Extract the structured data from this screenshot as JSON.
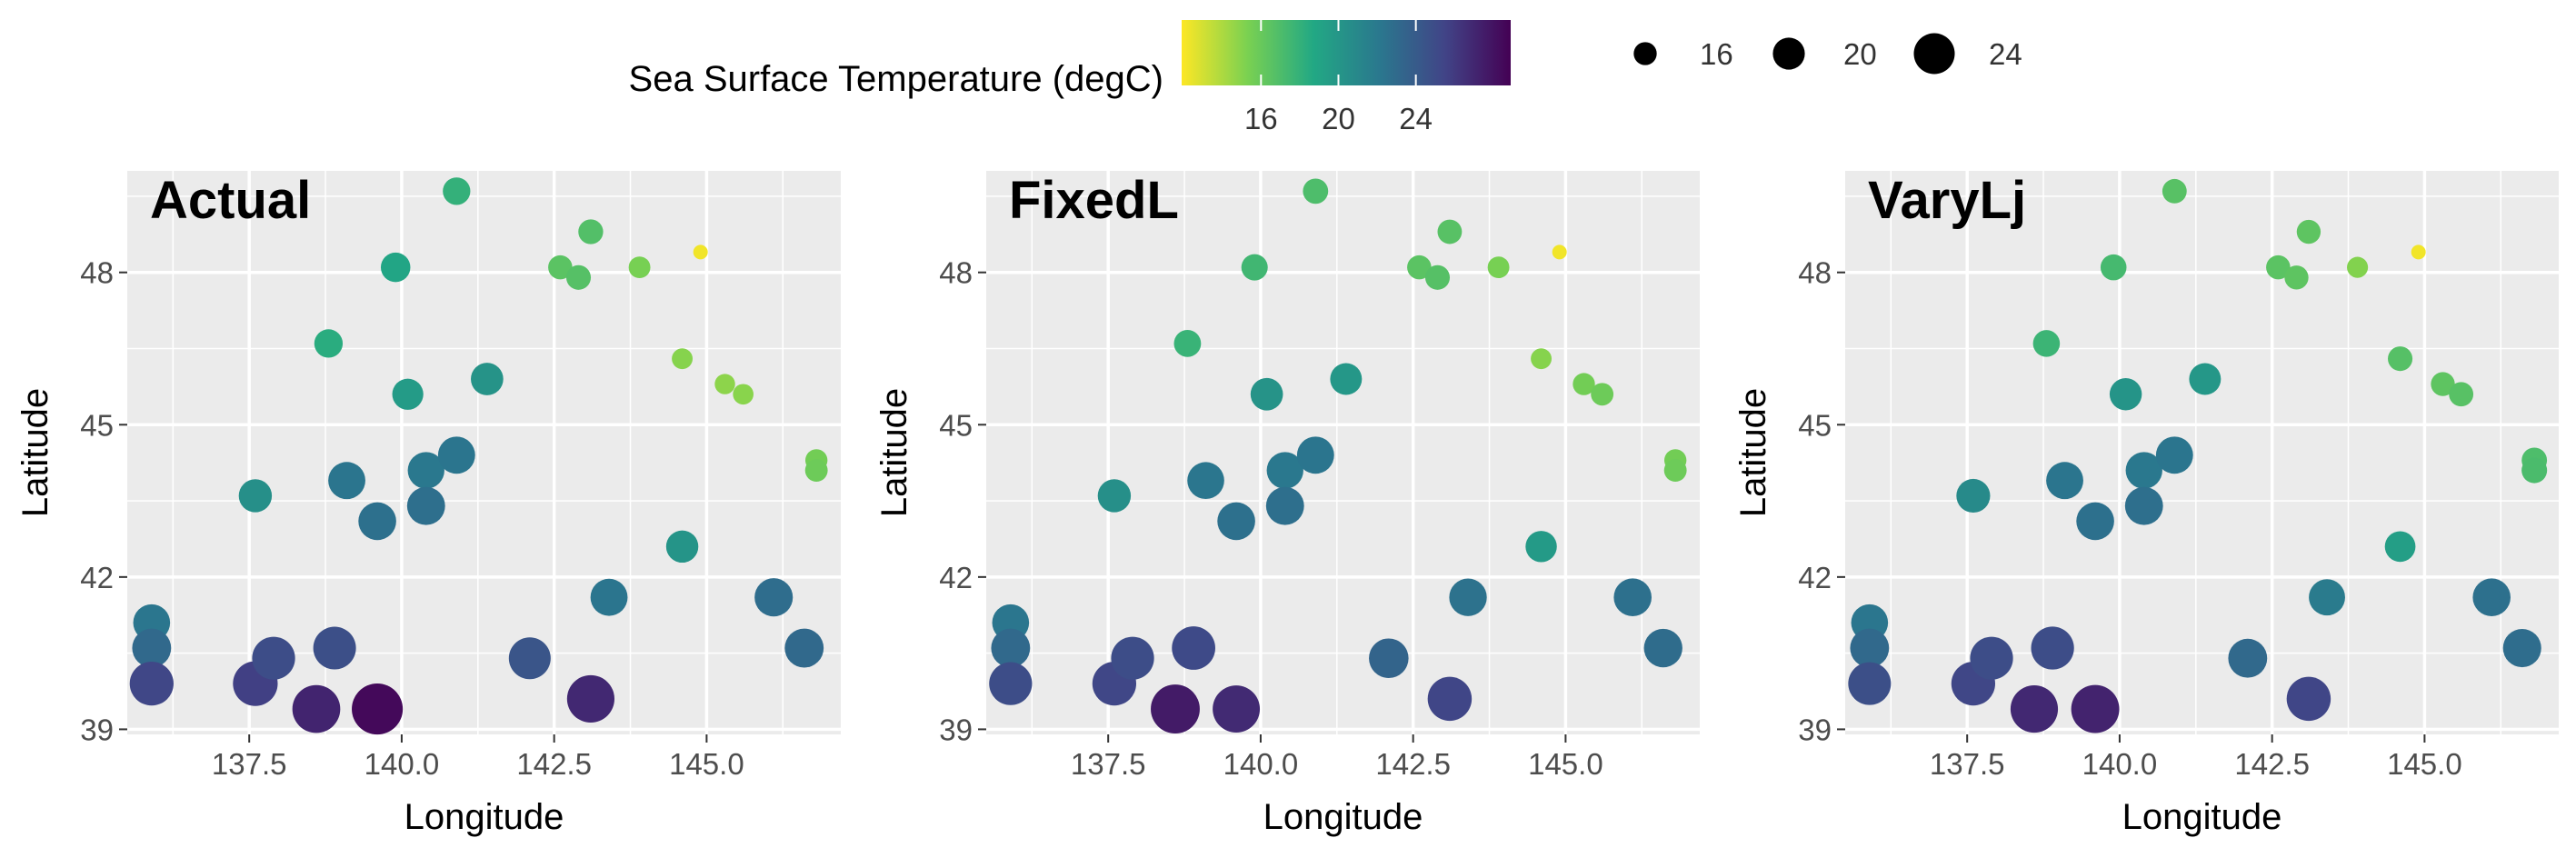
{
  "legend": {
    "color_title": "Sea Surface Temperature (degC)",
    "color_ticks": [
      "16",
      "20",
      "24"
    ],
    "size_labels": [
      "16",
      "20",
      "24"
    ],
    "colormap": [
      "#FDE725",
      "#7AD151",
      "#22A884",
      "#2A788E",
      "#414487",
      "#440154"
    ]
  },
  "chart_data": [
    {
      "type": "scatter",
      "title": "Actual",
      "xlabel": "Longitude",
      "ylabel": "Latitude",
      "xlim": [
        135.5,
        147.2
      ],
      "ylim": [
        38.9,
        50.0
      ],
      "x_ticks": [
        "137.5",
        "140.0",
        "142.5",
        "145.0"
      ],
      "y_ticks": [
        "39",
        "42",
        "45",
        "48"
      ],
      "grid": true,
      "points": [
        {
          "x": 140.9,
          "y": 49.6,
          "t": 18.0
        },
        {
          "x": 139.9,
          "y": 48.1,
          "t": 18.9
        },
        {
          "x": 143.1,
          "y": 48.8,
          "t": 16.8
        },
        {
          "x": 142.6,
          "y": 48.1,
          "t": 16.5
        },
        {
          "x": 142.9,
          "y": 47.9,
          "t": 16.7
        },
        {
          "x": 143.9,
          "y": 48.1,
          "t": 15.4
        },
        {
          "x": 144.9,
          "y": 48.4,
          "t": 12.2
        },
        {
          "x": 138.8,
          "y": 46.6,
          "t": 18.4
        },
        {
          "x": 140.1,
          "y": 45.6,
          "t": 19.6
        },
        {
          "x": 141.4,
          "y": 45.9,
          "t": 20.2
        },
        {
          "x": 144.6,
          "y": 46.3,
          "t": 15.0
        },
        {
          "x": 145.3,
          "y": 45.8,
          "t": 14.8
        },
        {
          "x": 145.6,
          "y": 45.6,
          "t": 14.9
        },
        {
          "x": 146.8,
          "y": 44.3,
          "t": 15.6
        },
        {
          "x": 146.8,
          "y": 44.1,
          "t": 15.8
        },
        {
          "x": 137.6,
          "y": 43.6,
          "t": 20.5
        },
        {
          "x": 139.1,
          "y": 43.9,
          "t": 22.3
        },
        {
          "x": 139.6,
          "y": 43.1,
          "t": 22.6
        },
        {
          "x": 140.4,
          "y": 44.1,
          "t": 22.1
        },
        {
          "x": 140.9,
          "y": 44.4,
          "t": 22.3
        },
        {
          "x": 140.4,
          "y": 43.4,
          "t": 22.7
        },
        {
          "x": 144.6,
          "y": 42.6,
          "t": 20.1
        },
        {
          "x": 135.9,
          "y": 41.1,
          "t": 22.2
        },
        {
          "x": 135.9,
          "y": 40.6,
          "t": 23.1
        },
        {
          "x": 135.9,
          "y": 39.9,
          "t": 25.3
        },
        {
          "x": 137.6,
          "y": 39.9,
          "t": 25.7
        },
        {
          "x": 137.9,
          "y": 40.4,
          "t": 24.9
        },
        {
          "x": 138.6,
          "y": 39.4,
          "t": 27.1
        },
        {
          "x": 138.9,
          "y": 40.6,
          "t": 24.8
        },
        {
          "x": 139.6,
          "y": 39.4,
          "t": 28.5
        },
        {
          "x": 142.1,
          "y": 40.4,
          "t": 24.4
        },
        {
          "x": 143.1,
          "y": 39.6,
          "t": 26.9
        },
        {
          "x": 143.4,
          "y": 41.6,
          "t": 22.3
        },
        {
          "x": 146.1,
          "y": 41.6,
          "t": 22.8
        },
        {
          "x": 146.6,
          "y": 40.6,
          "t": 23.1
        }
      ]
    },
    {
      "type": "scatter",
      "title": "FixedL",
      "xlabel": "Longitude",
      "ylabel": "Latitude",
      "xlim": [
        135.5,
        147.2
      ],
      "ylim": [
        38.9,
        50.0
      ],
      "x_ticks": [
        "137.5",
        "140.0",
        "142.5",
        "145.0"
      ],
      "y_ticks": [
        "39",
        "42",
        "45",
        "48"
      ],
      "grid": true,
      "points": [
        {
          "x": 140.9,
          "y": 49.6,
          "t": 17.0
        },
        {
          "x": 139.9,
          "y": 48.1,
          "t": 17.5
        },
        {
          "x": 143.1,
          "y": 48.8,
          "t": 16.6
        },
        {
          "x": 142.6,
          "y": 48.1,
          "t": 16.5
        },
        {
          "x": 142.9,
          "y": 47.9,
          "t": 16.7
        },
        {
          "x": 143.9,
          "y": 48.1,
          "t": 15.4
        },
        {
          "x": 144.9,
          "y": 48.4,
          "t": 12.2
        },
        {
          "x": 138.8,
          "y": 46.6,
          "t": 17.8
        },
        {
          "x": 140.1,
          "y": 45.6,
          "t": 20.2
        },
        {
          "x": 141.4,
          "y": 45.9,
          "t": 19.9
        },
        {
          "x": 144.6,
          "y": 46.3,
          "t": 15.0
        },
        {
          "x": 145.3,
          "y": 45.8,
          "t": 15.6
        },
        {
          "x": 145.6,
          "y": 45.6,
          "t": 15.8
        },
        {
          "x": 146.8,
          "y": 44.3,
          "t": 15.6
        },
        {
          "x": 146.8,
          "y": 44.1,
          "t": 15.8
        },
        {
          "x": 137.6,
          "y": 43.6,
          "t": 20.5
        },
        {
          "x": 139.1,
          "y": 43.9,
          "t": 22.2
        },
        {
          "x": 139.6,
          "y": 43.1,
          "t": 22.6
        },
        {
          "x": 140.4,
          "y": 44.1,
          "t": 22.1
        },
        {
          "x": 140.9,
          "y": 44.4,
          "t": 22.3
        },
        {
          "x": 140.4,
          "y": 43.4,
          "t": 22.7
        },
        {
          "x": 144.6,
          "y": 42.6,
          "t": 19.7
        },
        {
          "x": 135.9,
          "y": 41.1,
          "t": 22.2
        },
        {
          "x": 135.9,
          "y": 40.6,
          "t": 23.1
        },
        {
          "x": 135.9,
          "y": 39.9,
          "t": 24.9
        },
        {
          "x": 137.6,
          "y": 39.9,
          "t": 25.3
        },
        {
          "x": 137.9,
          "y": 40.4,
          "t": 24.9
        },
        {
          "x": 138.6,
          "y": 39.4,
          "t": 27.6
        },
        {
          "x": 138.9,
          "y": 40.6,
          "t": 25.1
        },
        {
          "x": 139.6,
          "y": 39.4,
          "t": 26.8
        },
        {
          "x": 142.1,
          "y": 40.4,
          "t": 23.4
        },
        {
          "x": 143.1,
          "y": 39.6,
          "t": 25.4
        },
        {
          "x": 143.4,
          "y": 41.6,
          "t": 22.5
        },
        {
          "x": 146.1,
          "y": 41.6,
          "t": 22.6
        },
        {
          "x": 146.6,
          "y": 40.6,
          "t": 22.9
        }
      ]
    },
    {
      "type": "scatter",
      "title": "VaryLj",
      "xlabel": "Longitude",
      "ylabel": "Latitude",
      "xlim": [
        135.5,
        147.2
      ],
      "ylim": [
        38.9,
        50.0
      ],
      "x_ticks": [
        "137.5",
        "140.0",
        "142.5",
        "145.0"
      ],
      "y_ticks": [
        "39",
        "42",
        "45",
        "48"
      ],
      "grid": true,
      "points": [
        {
          "x": 140.9,
          "y": 49.6,
          "t": 16.6
        },
        {
          "x": 139.9,
          "y": 48.1,
          "t": 17.3
        },
        {
          "x": 143.1,
          "y": 48.8,
          "t": 16.4
        },
        {
          "x": 142.6,
          "y": 48.1,
          "t": 16.5
        },
        {
          "x": 142.9,
          "y": 47.9,
          "t": 16.4
        },
        {
          "x": 143.9,
          "y": 48.1,
          "t": 15.1
        },
        {
          "x": 144.9,
          "y": 48.4,
          "t": 12.2
        },
        {
          "x": 138.8,
          "y": 46.6,
          "t": 17.7
        },
        {
          "x": 140.1,
          "y": 45.6,
          "t": 20.1
        },
        {
          "x": 141.4,
          "y": 45.9,
          "t": 19.9
        },
        {
          "x": 144.6,
          "y": 46.3,
          "t": 16.7
        },
        {
          "x": 145.3,
          "y": 45.8,
          "t": 16.4
        },
        {
          "x": 145.6,
          "y": 45.6,
          "t": 16.6
        },
        {
          "x": 146.8,
          "y": 44.3,
          "t": 17.0
        },
        {
          "x": 146.8,
          "y": 44.1,
          "t": 17.1
        },
        {
          "x": 137.6,
          "y": 43.6,
          "t": 20.8
        },
        {
          "x": 139.1,
          "y": 43.9,
          "t": 22.3
        },
        {
          "x": 139.6,
          "y": 43.1,
          "t": 22.6
        },
        {
          "x": 140.4,
          "y": 44.1,
          "t": 22.1
        },
        {
          "x": 140.9,
          "y": 44.4,
          "t": 22.3
        },
        {
          "x": 140.4,
          "y": 43.4,
          "t": 22.7
        },
        {
          "x": 144.6,
          "y": 42.6,
          "t": 19.4
        },
        {
          "x": 135.9,
          "y": 41.1,
          "t": 22.2
        },
        {
          "x": 135.9,
          "y": 40.6,
          "t": 23.1
        },
        {
          "x": 135.9,
          "y": 39.9,
          "t": 24.8
        },
        {
          "x": 137.6,
          "y": 39.9,
          "t": 25.3
        },
        {
          "x": 137.9,
          "y": 40.4,
          "t": 24.9
        },
        {
          "x": 138.6,
          "y": 39.4,
          "t": 26.9
        },
        {
          "x": 138.9,
          "y": 40.6,
          "t": 24.9
        },
        {
          "x": 139.6,
          "y": 39.4,
          "t": 27.2
        },
        {
          "x": 142.1,
          "y": 40.4,
          "t": 23.1
        },
        {
          "x": 143.1,
          "y": 39.6,
          "t": 25.4
        },
        {
          "x": 143.4,
          "y": 41.6,
          "t": 21.9
        },
        {
          "x": 146.1,
          "y": 41.6,
          "t": 22.6
        },
        {
          "x": 146.6,
          "y": 40.6,
          "t": 22.8
        }
      ]
    }
  ]
}
